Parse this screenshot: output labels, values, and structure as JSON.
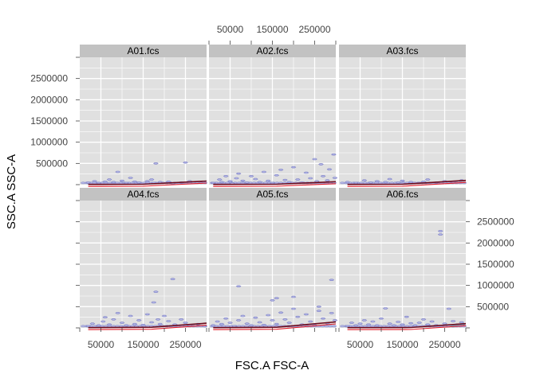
{
  "colors": {
    "panel_bg": "#e0e0e0",
    "strip_bg": "#c2c2c2",
    "grid": "#ffffff",
    "hex_fill": "#b4b7e6",
    "hex_edge": "#7d80c6",
    "dense_hex": "#7fb7d6",
    "fit_line_dark": "#6b0a1a",
    "fit_line_red": "#e01a26"
  },
  "chart_data": {
    "type": "hexbin",
    "xlabel": "FSC.A FSC-A",
    "ylabel": "SSC.A SSC-A",
    "xlim": [
      0,
      300000
    ],
    "ylim": [
      0,
      3000000
    ],
    "x_ticks": [
      50000,
      150000,
      250000
    ],
    "x_minor": [
      0,
      100000,
      200000,
      300000
    ],
    "y_ticks": [
      500000,
      1000000,
      1500000,
      2000000,
      2500000
    ],
    "x_tick_labels": [
      "50000",
      "150000",
      "250000"
    ],
    "y_tick_labels": [
      "500000",
      "1000000",
      "1500000",
      "2000000",
      "2500000"
    ],
    "layout": {
      "columns": 3,
      "rows": 2
    },
    "panels": [
      {
        "label": "A01.fcs",
        "points": [
          [
            20000,
            50000
          ],
          [
            35000,
            80000
          ],
          [
            45000,
            40000
          ],
          [
            60000,
            70000
          ],
          [
            70000,
            120000
          ],
          [
            80000,
            60000
          ],
          [
            90000,
            300000
          ],
          [
            100000,
            90000
          ],
          [
            110000,
            40000
          ],
          [
            120000,
            160000
          ],
          [
            130000,
            70000
          ],
          [
            140000,
            50000
          ],
          [
            160000,
            80000
          ],
          [
            170000,
            120000
          ],
          [
            175000,
            40000
          ],
          [
            180000,
            500000
          ],
          [
            190000,
            60000
          ],
          [
            210000,
            70000
          ],
          [
            220000,
            30000
          ],
          [
            240000,
            50000
          ],
          [
            250000,
            520000
          ],
          [
            260000,
            80000
          ]
        ],
        "fit": [
          [
            20000,
            5000
          ],
          [
            150000,
            10000
          ],
          [
            300000,
            85000
          ]
        ]
      },
      {
        "label": "A02.fcs",
        "points": [
          [
            10000,
            40000
          ],
          [
            25000,
            120000
          ],
          [
            30000,
            60000
          ],
          [
            40000,
            200000
          ],
          [
            50000,
            80000
          ],
          [
            55000,
            30000
          ],
          [
            65000,
            150000
          ],
          [
            70000,
            260000
          ],
          [
            80000,
            90000
          ],
          [
            90000,
            50000
          ],
          [
            100000,
            200000
          ],
          [
            110000,
            130000
          ],
          [
            120000,
            60000
          ],
          [
            130000,
            300000
          ],
          [
            140000,
            90000
          ],
          [
            150000,
            40000
          ],
          [
            160000,
            220000
          ],
          [
            170000,
            350000
          ],
          [
            180000,
            110000
          ],
          [
            190000,
            60000
          ],
          [
            200000,
            410000
          ],
          [
            210000,
            120000
          ],
          [
            220000,
            50000
          ],
          [
            230000,
            280000
          ],
          [
            240000,
            150000
          ],
          [
            250000,
            600000
          ],
          [
            255000,
            80000
          ],
          [
            265000,
            480000
          ],
          [
            270000,
            200000
          ],
          [
            280000,
            100000
          ],
          [
            285000,
            360000
          ],
          [
            295000,
            710000
          ],
          [
            298000,
            160000
          ]
        ],
        "fit": [
          [
            10000,
            5000
          ],
          [
            160000,
            10000
          ],
          [
            300000,
            70000
          ]
        ]
      },
      {
        "label": "A03.fcs",
        "points": [
          [
            20000,
            60000
          ],
          [
            40000,
            40000
          ],
          [
            60000,
            100000
          ],
          [
            75000,
            50000
          ],
          [
            90000,
            80000
          ],
          [
            110000,
            60000
          ],
          [
            120000,
            130000
          ],
          [
            140000,
            50000
          ],
          [
            150000,
            90000
          ],
          [
            170000,
            60000
          ],
          [
            190000,
            40000
          ],
          [
            200000,
            70000
          ],
          [
            210000,
            120000
          ],
          [
            230000,
            50000
          ],
          [
            250000,
            80000
          ],
          [
            270000,
            60000
          ],
          [
            290000,
            100000
          ]
        ],
        "fit": [
          [
            20000,
            5000
          ],
          [
            150000,
            10000
          ],
          [
            300000,
            100000
          ]
        ]
      },
      {
        "label": "A04.fcs",
        "points": [
          [
            20000,
            40000
          ],
          [
            30000,
            100000
          ],
          [
            45000,
            60000
          ],
          [
            55000,
            150000
          ],
          [
            60000,
            250000
          ],
          [
            70000,
            80000
          ],
          [
            80000,
            200000
          ],
          [
            90000,
            350000
          ],
          [
            100000,
            120000
          ],
          [
            110000,
            60000
          ],
          [
            120000,
            280000
          ],
          [
            130000,
            90000
          ],
          [
            140000,
            180000
          ],
          [
            150000,
            70000
          ],
          [
            160000,
            320000
          ],
          [
            170000,
            130000
          ],
          [
            175000,
            600000
          ],
          [
            180000,
            850000
          ],
          [
            185000,
            200000
          ],
          [
            190000,
            90000
          ],
          [
            200000,
            280000
          ],
          [
            210000,
            160000
          ],
          [
            220000,
            1150000
          ],
          [
            225000,
            80000
          ],
          [
            240000,
            200000
          ],
          [
            250000,
            120000
          ],
          [
            260000,
            60000
          ],
          [
            280000,
            90000
          ],
          [
            295000,
            40000
          ]
        ],
        "fit": [
          [
            20000,
            5000
          ],
          [
            170000,
            15000
          ],
          [
            300000,
            110000
          ]
        ]
      },
      {
        "label": "A05.fcs",
        "points": [
          [
            10000,
            60000
          ],
          [
            20000,
            150000
          ],
          [
            30000,
            90000
          ],
          [
            40000,
            220000
          ],
          [
            50000,
            120000
          ],
          [
            60000,
            40000
          ],
          [
            70000,
            180000
          ],
          [
            80000,
            280000
          ],
          [
            90000,
            100000
          ],
          [
            100000,
            60000
          ],
          [
            110000,
            240000
          ],
          [
            120000,
            130000
          ],
          [
            130000,
            70000
          ],
          [
            140000,
            300000
          ],
          [
            150000,
            180000
          ],
          [
            160000,
            90000
          ],
          [
            170000,
            360000
          ],
          [
            180000,
            200000
          ],
          [
            190000,
            120000
          ],
          [
            200000,
            450000
          ],
          [
            210000,
            260000
          ],
          [
            220000,
            80000
          ],
          [
            230000,
            320000
          ],
          [
            240000,
            150000
          ],
          [
            250000,
            60000
          ],
          [
            260000,
            400000
          ],
          [
            270000,
            220000
          ],
          [
            280000,
            110000
          ],
          [
            290000,
            350000
          ],
          [
            298000,
            180000
          ],
          [
            70000,
            980000
          ],
          [
            150000,
            650000
          ],
          [
            160000,
            700000
          ],
          [
            200000,
            730000
          ],
          [
            260000,
            500000
          ],
          [
            290000,
            1130000
          ]
        ],
        "fit": [
          [
            10000,
            5000
          ],
          [
            160000,
            15000
          ],
          [
            300000,
            140000
          ]
        ]
      },
      {
        "label": "A06.fcs",
        "points": [
          [
            20000,
            40000
          ],
          [
            30000,
            120000
          ],
          [
            40000,
            60000
          ],
          [
            50000,
            100000
          ],
          [
            60000,
            180000
          ],
          [
            70000,
            80000
          ],
          [
            80000,
            150000
          ],
          [
            90000,
            60000
          ],
          [
            100000,
            220000
          ],
          [
            110000,
            460000
          ],
          [
            120000,
            100000
          ],
          [
            130000,
            60000
          ],
          [
            140000,
            140000
          ],
          [
            150000,
            80000
          ],
          [
            160000,
            260000
          ],
          [
            170000,
            110000
          ],
          [
            180000,
            60000
          ],
          [
            190000,
            120000
          ],
          [
            200000,
            200000
          ],
          [
            210000,
            80000
          ],
          [
            220000,
            150000
          ],
          [
            230000,
            60000
          ],
          [
            240000,
            2200000
          ],
          [
            240000,
            2280000
          ],
          [
            250000,
            100000
          ],
          [
            260000,
            450000
          ],
          [
            270000,
            160000
          ],
          [
            280000,
            80000
          ],
          [
            290000,
            130000
          ]
        ],
        "dense": [
          [
            270000,
            40000
          ],
          [
            280000,
            60000
          ],
          [
            292000,
            90000
          ]
        ],
        "fit": [
          [
            20000,
            5000
          ],
          [
            170000,
            10000
          ],
          [
            300000,
            100000
          ]
        ]
      }
    ]
  }
}
